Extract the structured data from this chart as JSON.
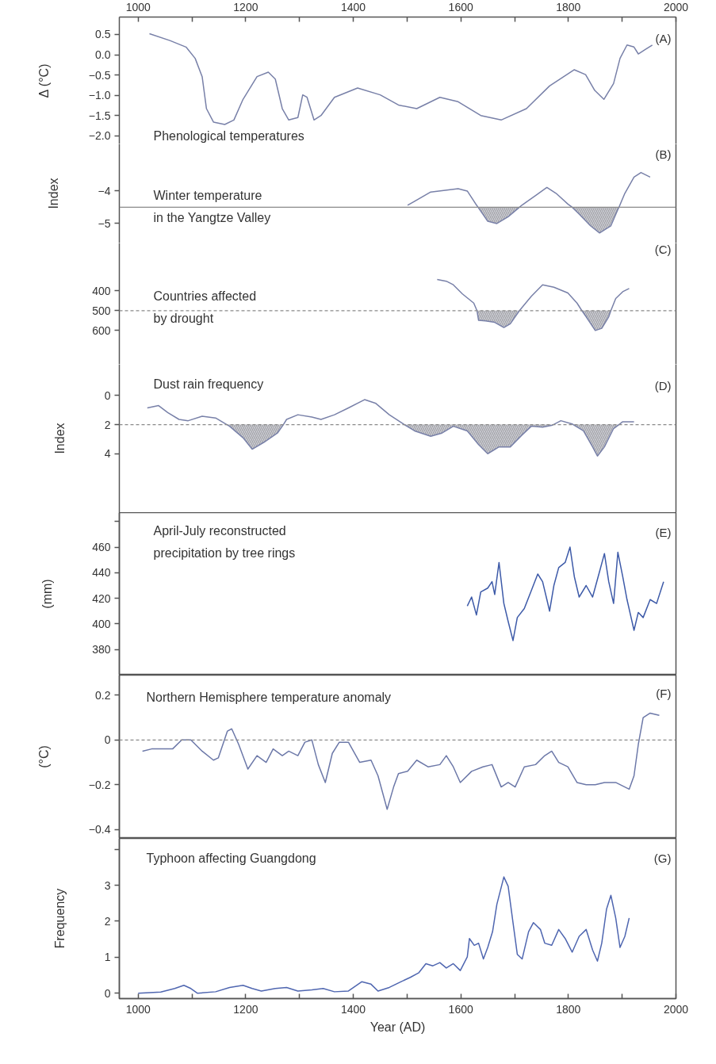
{
  "chart_data": [
    {
      "type": "line",
      "title": "Phenological temperatures",
      "annotations": [
        "(A)"
      ],
      "ylabel": "Δ (°C)",
      "xlim": [
        965,
        2000
      ],
      "x2lim": [
        965,
        2000
      ],
      "x2ticks": [
        1000,
        {
          "value": 1100,
          "label": null
        },
        1200,
        {
          "value": 1300,
          "label": null
        },
        1400,
        {
          "value": 1500,
          "label": null
        },
        1600,
        {
          "value": 1700,
          "label": null
        },
        1800,
        {
          "value": 1900,
          "label": null
        },
        2000
      ],
      "tick_labels": "y",
      "ylim": [
        -2.2,
        0.93
      ],
      "yticks": [
        0.5,
        {
          "value": 0,
          "label": "0.0"
        },
        {
          "value": -0.5,
          "label": "−0.5"
        },
        {
          "value": -1,
          "label": "−1.0"
        },
        {
          "value": -1.5,
          "label": "−1.5"
        },
        {
          "value": -2,
          "label": "−2.0"
        }
      ],
      "color": "#7880a8",
      "x": [
        1021,
        1059,
        1089,
        1106,
        1119,
        1127,
        1140,
        1161,
        1178,
        1195,
        1221,
        1242,
        1255,
        1268,
        1280,
        1297,
        1306,
        1314,
        1327,
        1340,
        1365,
        1408,
        1450,
        1484,
        1518,
        1561,
        1595,
        1637,
        1675,
        1722,
        1765,
        1811,
        1832,
        1849,
        1866,
        1884,
        1896,
        1909,
        1922,
        1930,
        1943,
        1956
      ],
      "values": [
        0.52,
        0.35,
        0.19,
        -0.09,
        -0.54,
        -1.33,
        -1.66,
        -1.72,
        -1.61,
        -1.1,
        -0.54,
        -0.43,
        -0.6,
        -1.33,
        -1.61,
        -1.55,
        -0.99,
        -1.05,
        -1.61,
        -1.5,
        -1.05,
        -0.82,
        -0.99,
        -1.24,
        -1.33,
        -1.05,
        -1.16,
        -1.5,
        -1.61,
        -1.33,
        -0.77,
        -0.37,
        -0.49,
        -0.88,
        -1.1,
        -0.71,
        -0.09,
        0.24,
        0.19,
        0.02,
        0.13,
        0.24
      ]
    },
    {
      "type": "line",
      "title": "Winter temperature\nin the Yangtze Valley",
      "annotations": [
        "(B)"
      ],
      "ylabel": "Index",
      "xlim": [
        965,
        2000
      ],
      "tick_labels": "y",
      "ylim": [
        -5.6,
        -2.55
      ],
      "yticks": [
        {
          "value": -5,
          "label": "−5"
        },
        {
          "value": -4,
          "label": "−4"
        }
      ],
      "ref_lines": [
        {
          "axis": "y",
          "value": -4.5,
          "line_style": "solid",
          "color": "#8a8a8a"
        }
      ],
      "x": [
        1501,
        1544,
        1595,
        1612,
        1629,
        1632,
        1650,
        1667,
        1688,
        1709,
        1714,
        1739,
        1760,
        1777,
        1799,
        1807,
        1820,
        1841,
        1858,
        1879,
        1892,
        1894,
        1905,
        1922,
        1935,
        1952
      ],
      "series": [
        {
          "color": "#7880a8",
          "values": [
            -4.44,
            -4.03,
            -3.93,
            -4.0,
            -4.43,
            -4.5,
            -4.93,
            -5.0,
            -4.79,
            -4.5,
            -4.43,
            -4.14,
            -3.89,
            -4.07,
            -4.4,
            -4.5,
            -4.71,
            -5.07,
            -5.29,
            -5.07,
            -4.57,
            -4.5,
            -4.07,
            -3.57,
            -3.43,
            -3.57
          ],
          "lower": [
            null,
            null,
            null,
            null,
            null,
            -4.5,
            -4.93,
            -5.0,
            -4.79,
            -4.5,
            null,
            null,
            null,
            null,
            null,
            -4.5,
            -4.71,
            -5.07,
            -5.29,
            -5.07,
            -4.57,
            -4.5,
            null,
            null,
            null,
            null
          ],
          "upper": [
            null,
            null,
            null,
            null,
            null,
            -4.5,
            -4.5,
            -4.5,
            -4.5,
            -4.5,
            null,
            null,
            null,
            null,
            null,
            -4.5,
            -4.5,
            -4.5,
            -4.5,
            -4.5,
            -4.5,
            -4.5,
            null,
            null,
            null,
            null
          ]
        }
      ]
    },
    {
      "type": "line",
      "title": "Countries affected\nby drought",
      "annotations": [
        "(C)"
      ],
      "xlim": [
        965,
        2000
      ],
      "tick_labels": "y",
      "ylim": [
        770,
        160
      ],
      "yticks": [
        400,
        500,
        600
      ],
      "ref_lines": [
        {
          "axis": "y",
          "value": 500,
          "line_style": "dashed",
          "color": "#8a8a8a"
        }
      ],
      "x": [
        1556,
        1573,
        1586,
        1603,
        1624,
        1630,
        1633,
        1646,
        1663,
        1680,
        1692,
        1709,
        1731,
        1752,
        1773,
        1799,
        1816,
        1825,
        1833,
        1850,
        1862,
        1875,
        1879,
        1888,
        1901,
        1913
      ],
      "series": [
        {
          "color": "#7880a8",
          "values": [
            343,
            352,
            370,
            416,
            462,
            500,
            549,
            552,
            559,
            585,
            566,
            500,
            428,
            370,
            382,
            411,
            462,
            500,
            531,
            600,
            589,
            531,
            500,
            439,
            405,
            389
          ],
          "lower": [
            null,
            null,
            null,
            null,
            null,
            500,
            500,
            500,
            500,
            500,
            500,
            500,
            null,
            null,
            null,
            null,
            null,
            500,
            500,
            500,
            500,
            500,
            500,
            null,
            null,
            null
          ],
          "upper": [
            null,
            null,
            null,
            null,
            null,
            500,
            549,
            552,
            559,
            585,
            566,
            500,
            null,
            null,
            null,
            null,
            null,
            500,
            531,
            600,
            589,
            531,
            500,
            null,
            null,
            null
          ]
        }
      ]
    },
    {
      "type": "line",
      "title": "Dust rain frequency",
      "annotations": [
        "(D)"
      ],
      "ylabel": "Index",
      "xlim": [
        965,
        2000
      ],
      "tick_labels": "y",
      "ylim": [
        8.05,
        -2.15
      ],
      "yticks": [
        0,
        2,
        4
      ],
      "ref_lines": [
        {
          "axis": "y",
          "value": 2,
          "line_style": "dashed",
          "color": "#8a8a8a"
        }
      ],
      "x": [
        1017,
        1038,
        1055,
        1076,
        1093,
        1119,
        1144,
        1165,
        1170,
        1195,
        1212,
        1234,
        1259,
        1270,
        1276,
        1297,
        1323,
        1340,
        1365,
        1391,
        1421,
        1442,
        1467,
        1493,
        1495,
        1514,
        1544,
        1565,
        1586,
        1612,
        1633,
        1650,
        1671,
        1692,
        1713,
        1731,
        1752,
        1769,
        1772,
        1786,
        1807,
        1809,
        1828,
        1845,
        1854,
        1867,
        1884,
        1894,
        1901,
        1922
      ],
      "series": [
        {
          "color": "#7880a8",
          "values": [
            0.85,
            0.69,
            1.17,
            1.64,
            1.73,
            1.42,
            1.54,
            2,
            2.11,
            2.9,
            3.69,
            3.21,
            2.58,
            2,
            1.64,
            1.32,
            1.48,
            1.64,
            1.32,
            0.85,
            0.28,
            0.54,
            1.32,
            1.95,
            2,
            2.43,
            2.8,
            2.58,
            2.11,
            2.43,
            3.37,
            4.0,
            3.53,
            3.53,
            2.74,
            2.11,
            2.17,
            2.05,
            2,
            1.73,
            1.95,
            2,
            2.43,
            3.53,
            4.16,
            3.53,
            2.27,
            2,
            1.8,
            1.8
          ],
          "lower": [
            null,
            null,
            null,
            null,
            null,
            null,
            null,
            2,
            2,
            2,
            2,
            2,
            2,
            2,
            null,
            null,
            null,
            null,
            null,
            null,
            null,
            null,
            null,
            null,
            2,
            2,
            2,
            2,
            2,
            2,
            2,
            2,
            2,
            2,
            2,
            2,
            2,
            2,
            2,
            null,
            null,
            2,
            2,
            2,
            2,
            2,
            2,
            2,
            null,
            null
          ],
          "upper": [
            null,
            null,
            null,
            null,
            null,
            null,
            null,
            2,
            2.11,
            2.9,
            3.69,
            3.21,
            2.58,
            2,
            null,
            null,
            null,
            null,
            null,
            null,
            null,
            null,
            null,
            null,
            2,
            2.43,
            2.8,
            2.58,
            2.11,
            2.43,
            3.37,
            4.0,
            3.53,
            3.53,
            2.74,
            2.11,
            2.17,
            2.05,
            2,
            null,
            null,
            2,
            2.43,
            3.53,
            4.16,
            3.53,
            2.27,
            2,
            null,
            null
          ]
        }
      ]
    },
    {
      "type": "line",
      "title": "April-July reconstructed\nprecipitation by tree rings",
      "annotations": [
        "(E)"
      ],
      "ylabel": "(mm)",
      "xlim": [
        965,
        2000
      ],
      "tick_labels": "y",
      "ylim": [
        360,
        487
      ],
      "yticks": [
        380,
        400,
        420,
        440,
        460,
        {
          "value": 480,
          "label": null
        }
      ],
      "color": "#3d5aa8",
      "x": [
        1612,
        1620,
        1629,
        1637,
        1650,
        1658,
        1663,
        1671,
        1680,
        1688,
        1697,
        1705,
        1718,
        1731,
        1743,
        1752,
        1760,
        1765,
        1773,
        1782,
        1794,
        1803,
        1811,
        1820,
        1833,
        1845,
        1858,
        1867,
        1875,
        1884,
        1892,
        1901,
        1909,
        1922,
        1930,
        1939,
        1952,
        1964,
        1977
      ],
      "values": [
        414,
        421,
        407,
        425,
        428,
        433,
        423,
        448,
        416,
        402,
        387,
        405,
        412,
        426,
        439,
        433,
        419,
        410,
        430,
        444,
        448,
        460,
        437,
        421,
        430,
        421,
        441,
        455,
        433,
        416,
        456,
        437,
        419,
        395,
        409,
        405,
        419,
        416,
        433
      ]
    },
    {
      "type": "line",
      "title": "Northern Hemisphere temperature anomaly",
      "annotations": [
        "(F)"
      ],
      "ylabel": "(°C)",
      "xlim": [
        965,
        2000
      ],
      "tick_labels": "y",
      "ylim": [
        -0.44,
        0.29
      ],
      "yticks": [
        {
          "value": -0.4,
          "label": "−0.4"
        },
        {
          "value": -0.2,
          "label": "−0.2"
        },
        0,
        0.2
      ],
      "color": "#6c78a8",
      "ref_lines": [
        {
          "axis": "y",
          "value": 0,
          "line_style": "dashed",
          "color": "#8a8a8a"
        }
      ],
      "x": [
        1008,
        1025,
        1042,
        1064,
        1081,
        1098,
        1119,
        1140,
        1149,
        1166,
        1174,
        1187,
        1204,
        1221,
        1238,
        1251,
        1268,
        1280,
        1297,
        1310,
        1323,
        1335,
        1348,
        1361,
        1374,
        1391,
        1412,
        1433,
        1446,
        1463,
        1475,
        1484,
        1501,
        1518,
        1539,
        1561,
        1573,
        1586,
        1599,
        1620,
        1641,
        1658,
        1675,
        1688,
        1701,
        1718,
        1739,
        1756,
        1769,
        1782,
        1799,
        1816,
        1833,
        1850,
        1867,
        1888,
        1913,
        1922,
        1930,
        1939,
        1952,
        1969
      ],
      "values": [
        -0.05,
        -0.04,
        -0.04,
        -0.04,
        0,
        0,
        -0.05,
        -0.09,
        -0.08,
        0.04,
        0.05,
        -0.02,
        -0.13,
        -0.07,
        -0.1,
        -0.04,
        -0.07,
        -0.05,
        -0.07,
        -0.01,
        0,
        -0.11,
        -0.19,
        -0.06,
        -0.01,
        -0.01,
        -0.1,
        -0.09,
        -0.16,
        -0.31,
        -0.21,
        -0.15,
        -0.14,
        -0.09,
        -0.12,
        -0.11,
        -0.07,
        -0.12,
        -0.19,
        -0.14,
        -0.12,
        -0.11,
        -0.21,
        -0.19,
        -0.21,
        -0.12,
        -0.11,
        -0.07,
        -0.05,
        -0.1,
        -0.12,
        -0.19,
        -0.2,
        -0.2,
        -0.19,
        -0.19,
        -0.22,
        -0.16,
        -0.02,
        0.1,
        0.12,
        0.11
      ]
    },
    {
      "type": "line",
      "title": "Typhoon affecting Guangdong",
      "annotations": [
        "(G)"
      ],
      "ylabel": "Frequency",
      "xlabel": "Year (AD)",
      "xlim": [
        965,
        2000
      ],
      "xticks": [
        1000,
        {
          "value": 1100,
          "label": null
        },
        1200,
        {
          "value": 1300,
          "label": null
        },
        1400,
        {
          "value": 1500,
          "label": null
        },
        1600,
        {
          "value": 1700,
          "label": null
        },
        1800,
        {
          "value": 1900,
          "label": null
        },
        2000
      ],
      "ylim": [
        -0.15,
        4.3
      ],
      "yticks": [
        0,
        1,
        2,
        3,
        {
          "value": 4,
          "label": null
        }
      ],
      "color": "#4f66b0",
      "x": [
        1000,
        1042,
        1068,
        1085,
        1098,
        1110,
        1144,
        1170,
        1195,
        1212,
        1229,
        1255,
        1276,
        1297,
        1323,
        1344,
        1365,
        1391,
        1416,
        1433,
        1446,
        1467,
        1489,
        1506,
        1522,
        1535,
        1548,
        1561,
        1573,
        1586,
        1599,
        1612,
        1616,
        1625,
        1633,
        1642,
        1650,
        1659,
        1667,
        1680,
        1688,
        1697,
        1705,
        1714,
        1726,
        1735,
        1748,
        1756,
        1769,
        1782,
        1794,
        1807,
        1820,
        1833,
        1845,
        1854,
        1862,
        1871,
        1879,
        1888,
        1896,
        1905,
        1913
      ],
      "values": [
        0,
        0.03,
        0.13,
        0.22,
        0.13,
        0,
        0.04,
        0.16,
        0.22,
        0.13,
        0.06,
        0.13,
        0.16,
        0.06,
        0.09,
        0.13,
        0.04,
        0.06,
        0.32,
        0.25,
        0.06,
        0.16,
        0.32,
        0.44,
        0.57,
        0.82,
        0.76,
        0.85,
        0.7,
        0.82,
        0.63,
        1.01,
        1.52,
        1.33,
        1.39,
        0.95,
        1.27,
        1.71,
        2.47,
        3.23,
        2.97,
        1.96,
        1.08,
        0.95,
        1.71,
        1.96,
        1.77,
        1.39,
        1.33,
        1.77,
        1.52,
        1.14,
        1.58,
        1.77,
        1.2,
        0.89,
        1.39,
        2.34,
        2.72,
        2.09,
        1.27,
        1.58,
        2.09
      ]
    }
  ]
}
